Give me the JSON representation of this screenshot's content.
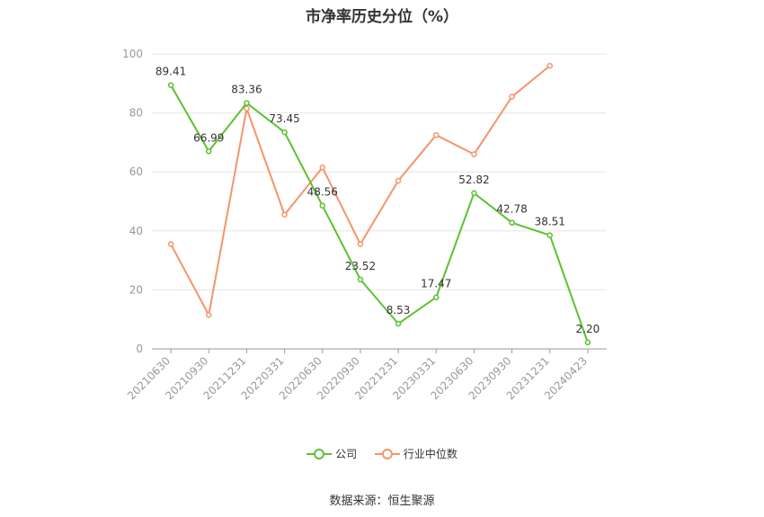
{
  "chart_data": {
    "type": "line",
    "title": "市净率历史分位（%）",
    "categories": [
      "20210630",
      "20210930",
      "20211231",
      "20220331",
      "20220630",
      "20220930",
      "20221231",
      "20230331",
      "20230630",
      "20230930",
      "20231231",
      "20240423"
    ],
    "ylim": [
      0,
      100
    ],
    "yticks": [
      0,
      20,
      40,
      60,
      80,
      100
    ],
    "grid": true,
    "legend_position": "bottom",
    "series": [
      {
        "name": "公司",
        "color": "#5cc130",
        "values": [
          89.41,
          66.99,
          83.36,
          73.45,
          48.56,
          23.52,
          8.53,
          17.47,
          52.82,
          42.78,
          38.51,
          2.2
        ],
        "labels": [
          "89.41",
          "66.99",
          "83.36",
          "73.45",
          "48.56",
          "23.52",
          "8.53",
          "17.47",
          "52.82",
          "42.78",
          "38.51",
          "2.20"
        ]
      },
      {
        "name": "行业中位数",
        "color": "#f4956a",
        "values": [
          35.5,
          11.5,
          81.5,
          45.5,
          61.5,
          35.5,
          57.0,
          72.5,
          66.0,
          85.5,
          96.0,
          null
        ]
      }
    ]
  },
  "source": "数据来源：恒生聚源"
}
